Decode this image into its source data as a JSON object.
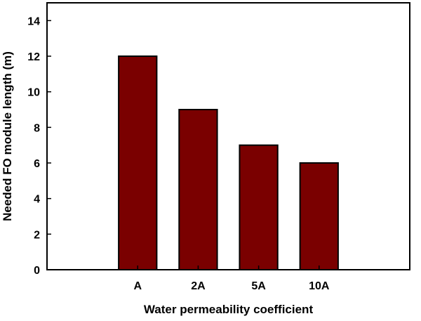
{
  "chart_data": {
    "type": "bar",
    "title": "",
    "xlabel": "Water permeability coefficient",
    "ylabel": "Needed FO module length (m)",
    "categories": [
      "A",
      "2A",
      "5A",
      "10A"
    ],
    "values": [
      12,
      9,
      7,
      6
    ],
    "ylim": [
      0,
      15
    ],
    "yticks": [
      0,
      2,
      4,
      6,
      8,
      10,
      12,
      14
    ],
    "grid": false,
    "legend": "none",
    "bar_color": "#7a0000"
  }
}
